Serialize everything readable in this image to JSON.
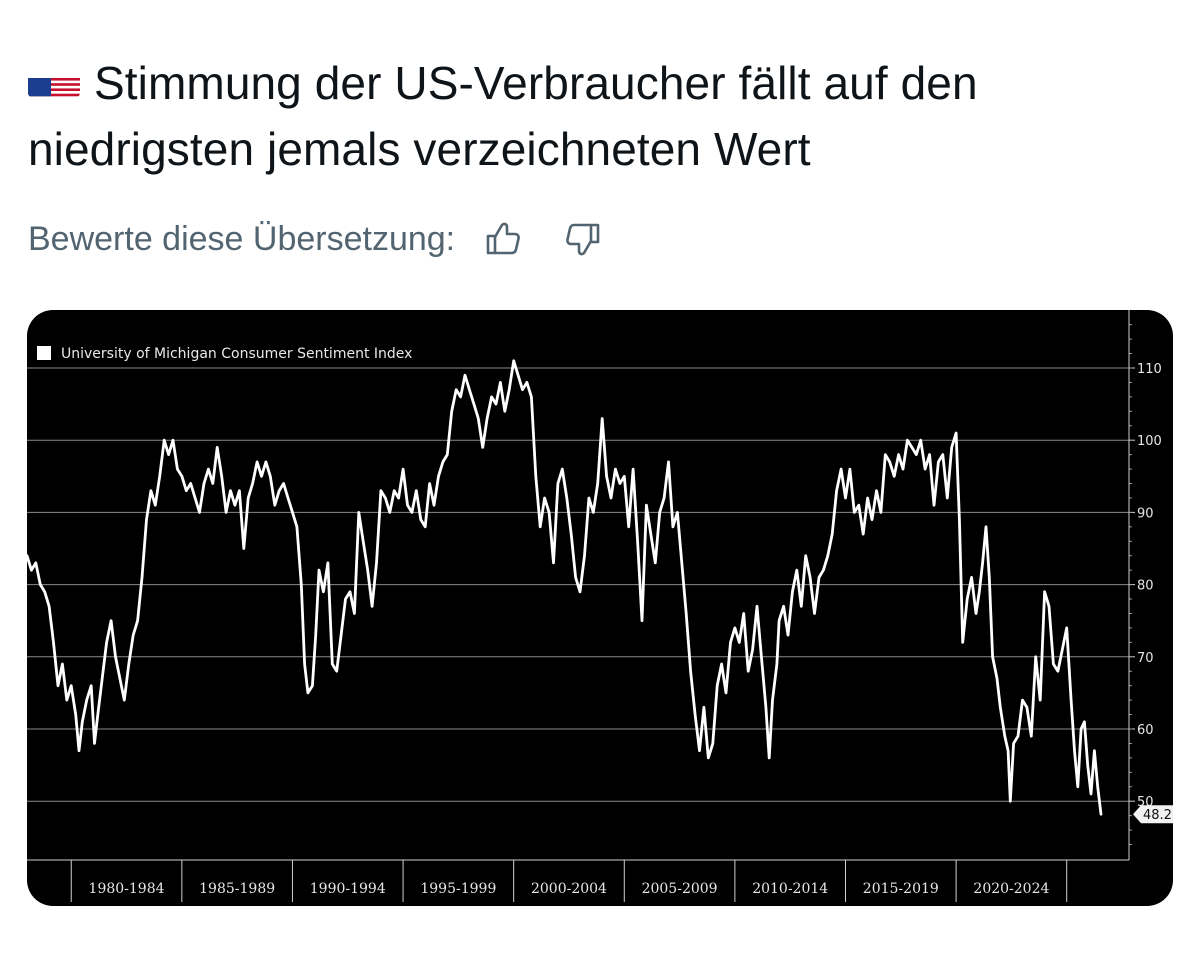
{
  "post": {
    "flag_icon": "us-flag-icon",
    "headline": "Stimmung der US-Verbraucher fällt auf den niedrigsten jemals verzeichneten Wert",
    "rate_prompt": "Bewerte diese Übersetzung:",
    "thumbs_up_icon": "thumbs-up-icon",
    "thumbs_down_icon": "thumbs-down-icon"
  },
  "chart_data": {
    "type": "line",
    "legend": "University of Michigan Consumer Sentiment Index",
    "x_categories": [
      "1980-1984",
      "1985-1989",
      "1990-1994",
      "1995-1999",
      "2000-2004",
      "2005-2009",
      "2010-2014",
      "2015-2019",
      "2020-2024"
    ],
    "y_ticks": [
      50,
      60,
      70,
      80,
      90,
      100,
      110
    ],
    "ylim": [
      42,
      117
    ],
    "last_value_label": "48.2",
    "line_color": "#ffffff",
    "background": "#000000",
    "grid": true,
    "legend_position": "top-left",
    "series": [
      {
        "values": [
          [
            1978.0,
            84
          ],
          [
            1978.2,
            82
          ],
          [
            1978.4,
            83
          ],
          [
            1978.6,
            80
          ],
          [
            1978.8,
            79
          ],
          [
            1979.0,
            77
          ],
          [
            1979.2,
            72
          ],
          [
            1979.4,
            66
          ],
          [
            1979.6,
            69
          ],
          [
            1979.8,
            64
          ],
          [
            1980.0,
            66
          ],
          [
            1980.2,
            62
          ],
          [
            1980.35,
            57
          ],
          [
            1980.5,
            61
          ],
          [
            1980.7,
            64
          ],
          [
            1980.9,
            66
          ],
          [
            1981.05,
            58
          ],
          [
            1981.2,
            62
          ],
          [
            1981.4,
            67
          ],
          [
            1981.6,
            72
          ],
          [
            1981.8,
            75
          ],
          [
            1982.0,
            70
          ],
          [
            1982.2,
            67
          ],
          [
            1982.4,
            64
          ],
          [
            1982.6,
            69
          ],
          [
            1982.8,
            73
          ],
          [
            1983.0,
            75
          ],
          [
            1983.2,
            81
          ],
          [
            1983.4,
            89
          ],
          [
            1983.6,
            93
          ],
          [
            1983.8,
            91
          ],
          [
            1984.0,
            95
          ],
          [
            1984.2,
            100
          ],
          [
            1984.4,
            98
          ],
          [
            1984.6,
            100
          ],
          [
            1984.8,
            96
          ],
          [
            1985.0,
            95
          ],
          [
            1985.2,
            93
          ],
          [
            1985.4,
            94
          ],
          [
            1985.6,
            92
          ],
          [
            1985.8,
            90
          ],
          [
            1986.0,
            94
          ],
          [
            1986.2,
            96
          ],
          [
            1986.4,
            94
          ],
          [
            1986.6,
            99
          ],
          [
            1986.8,
            95
          ],
          [
            1987.0,
            90
          ],
          [
            1987.2,
            93
          ],
          [
            1987.4,
            91
          ],
          [
            1987.6,
            93
          ],
          [
            1987.8,
            85
          ],
          [
            1988.0,
            92
          ],
          [
            1988.2,
            94
          ],
          [
            1988.4,
            97
          ],
          [
            1988.6,
            95
          ],
          [
            1988.8,
            97
          ],
          [
            1989.0,
            95
          ],
          [
            1989.2,
            91
          ],
          [
            1989.4,
            93
          ],
          [
            1989.6,
            94
          ],
          [
            1989.8,
            92
          ],
          [
            1990.0,
            90
          ],
          [
            1990.2,
            88
          ],
          [
            1990.4,
            80
          ],
          [
            1990.55,
            69
          ],
          [
            1990.7,
            65
          ],
          [
            1990.9,
            66
          ],
          [
            1991.05,
            73
          ],
          [
            1991.2,
            82
          ],
          [
            1991.4,
            79
          ],
          [
            1991.6,
            83
          ],
          [
            1991.8,
            69
          ],
          [
            1992.0,
            68
          ],
          [
            1992.2,
            73
          ],
          [
            1992.4,
            78
          ],
          [
            1992.6,
            79
          ],
          [
            1992.8,
            76
          ],
          [
            1993.0,
            90
          ],
          [
            1993.2,
            86
          ],
          [
            1993.4,
            82
          ],
          [
            1993.6,
            77
          ],
          [
            1993.8,
            83
          ],
          [
            1994.0,
            93
          ],
          [
            1994.2,
            92
          ],
          [
            1994.4,
            90
          ],
          [
            1994.6,
            93
          ],
          [
            1994.8,
            92
          ],
          [
            1995.0,
            96
          ],
          [
            1995.2,
            91
          ],
          [
            1995.4,
            90
          ],
          [
            1995.6,
            93
          ],
          [
            1995.8,
            89
          ],
          [
            1996.0,
            88
          ],
          [
            1996.2,
            94
          ],
          [
            1996.4,
            91
          ],
          [
            1996.6,
            95
          ],
          [
            1996.8,
            97
          ],
          [
            1997.0,
            98
          ],
          [
            1997.2,
            104
          ],
          [
            1997.4,
            107
          ],
          [
            1997.6,
            106
          ],
          [
            1997.8,
            109
          ],
          [
            1998.0,
            107
          ],
          [
            1998.2,
            105
          ],
          [
            1998.4,
            103
          ],
          [
            1998.6,
            99
          ],
          [
            1998.8,
            103
          ],
          [
            1999.0,
            106
          ],
          [
            1999.2,
            105
          ],
          [
            1999.4,
            108
          ],
          [
            1999.6,
            104
          ],
          [
            1999.8,
            107
          ],
          [
            2000.0,
            111
          ],
          [
            2000.2,
            109
          ],
          [
            2000.4,
            107
          ],
          [
            2000.6,
            108
          ],
          [
            2000.8,
            106
          ],
          [
            2001.0,
            95
          ],
          [
            2001.2,
            88
          ],
          [
            2001.4,
            92
          ],
          [
            2001.6,
            90
          ],
          [
            2001.8,
            83
          ],
          [
            2002.0,
            94
          ],
          [
            2002.2,
            96
          ],
          [
            2002.4,
            92
          ],
          [
            2002.6,
            87
          ],
          [
            2002.8,
            81
          ],
          [
            2003.0,
            79
          ],
          [
            2003.2,
            84
          ],
          [
            2003.4,
            92
          ],
          [
            2003.6,
            90
          ],
          [
            2003.8,
            94
          ],
          [
            2004.0,
            103
          ],
          [
            2004.2,
            95
          ],
          [
            2004.4,
            92
          ],
          [
            2004.6,
            96
          ],
          [
            2004.8,
            94
          ],
          [
            2005.0,
            95
          ],
          [
            2005.2,
            88
          ],
          [
            2005.4,
            96
          ],
          [
            2005.6,
            86
          ],
          [
            2005.8,
            75
          ],
          [
            2006.0,
            91
          ],
          [
            2006.2,
            87
          ],
          [
            2006.4,
            83
          ],
          [
            2006.6,
            90
          ],
          [
            2006.8,
            92
          ],
          [
            2007.0,
            97
          ],
          [
            2007.2,
            88
          ],
          [
            2007.4,
            90
          ],
          [
            2007.6,
            83
          ],
          [
            2007.8,
            76
          ],
          [
            2008.0,
            68
          ],
          [
            2008.2,
            62
          ],
          [
            2008.4,
            57
          ],
          [
            2008.6,
            63
          ],
          [
            2008.8,
            56
          ],
          [
            2009.0,
            58
          ],
          [
            2009.2,
            66
          ],
          [
            2009.4,
            69
          ],
          [
            2009.6,
            65
          ],
          [
            2009.8,
            72
          ],
          [
            2010.0,
            74
          ],
          [
            2010.2,
            72
          ],
          [
            2010.4,
            76
          ],
          [
            2010.6,
            68
          ],
          [
            2010.8,
            71
          ],
          [
            2011.0,
            77
          ],
          [
            2011.2,
            70
          ],
          [
            2011.4,
            63
          ],
          [
            2011.55,
            56
          ],
          [
            2011.7,
            64
          ],
          [
            2011.9,
            69
          ],
          [
            2012.0,
            75
          ],
          [
            2012.2,
            77
          ],
          [
            2012.4,
            73
          ],
          [
            2012.6,
            79
          ],
          [
            2012.8,
            82
          ],
          [
            2013.0,
            77
          ],
          [
            2013.2,
            84
          ],
          [
            2013.4,
            81
          ],
          [
            2013.6,
            76
          ],
          [
            2013.8,
            81
          ],
          [
            2014.0,
            82
          ],
          [
            2014.2,
            84
          ],
          [
            2014.4,
            87
          ],
          [
            2014.6,
            93
          ],
          [
            2014.8,
            96
          ],
          [
            2015.0,
            92
          ],
          [
            2015.2,
            96
          ],
          [
            2015.4,
            90
          ],
          [
            2015.6,
            91
          ],
          [
            2015.8,
            87
          ],
          [
            2016.0,
            92
          ],
          [
            2016.2,
            89
          ],
          [
            2016.4,
            93
          ],
          [
            2016.6,
            90
          ],
          [
            2016.8,
            98
          ],
          [
            2017.0,
            97
          ],
          [
            2017.2,
            95
          ],
          [
            2017.4,
            98
          ],
          [
            2017.6,
            96
          ],
          [
            2017.8,
            100
          ],
          [
            2018.0,
            99
          ],
          [
            2018.2,
            98
          ],
          [
            2018.4,
            100
          ],
          [
            2018.6,
            96
          ],
          [
            2018.8,
            98
          ],
          [
            2019.0,
            91
          ],
          [
            2019.2,
            97
          ],
          [
            2019.4,
            98
          ],
          [
            2019.6,
            92
          ],
          [
            2019.8,
            99
          ],
          [
            2020.0,
            101
          ],
          [
            2020.15,
            89
          ],
          [
            2020.3,
            72
          ],
          [
            2020.5,
            78
          ],
          [
            2020.7,
            81
          ],
          [
            2020.9,
            76
          ],
          [
            2021.05,
            79
          ],
          [
            2021.2,
            83
          ],
          [
            2021.35,
            88
          ],
          [
            2021.5,
            81
          ],
          [
            2021.65,
            70
          ],
          [
            2021.85,
            67
          ],
          [
            2022.0,
            63
          ],
          [
            2022.2,
            59
          ],
          [
            2022.35,
            57
          ],
          [
            2022.45,
            50
          ],
          [
            2022.6,
            58
          ],
          [
            2022.8,
            59
          ],
          [
            2023.0,
            64
          ],
          [
            2023.2,
            63
          ],
          [
            2023.4,
            59
          ],
          [
            2023.6,
            70
          ],
          [
            2023.8,
            64
          ],
          [
            2024.0,
            79
          ],
          [
            2024.2,
            77
          ],
          [
            2024.4,
            69
          ],
          [
            2024.6,
            68
          ],
          [
            2024.8,
            71
          ],
          [
            2025.0,
            74
          ],
          [
            2025.2,
            64
          ],
          [
            2025.35,
            57
          ],
          [
            2025.5,
            52
          ],
          [
            2025.65,
            60
          ],
          [
            2025.8,
            61
          ],
          [
            2025.95,
            55
          ],
          [
            2026.1,
            51
          ],
          [
            2026.25,
            57
          ],
          [
            2026.4,
            52
          ],
          [
            2026.55,
            48.2
          ]
        ]
      }
    ]
  }
}
